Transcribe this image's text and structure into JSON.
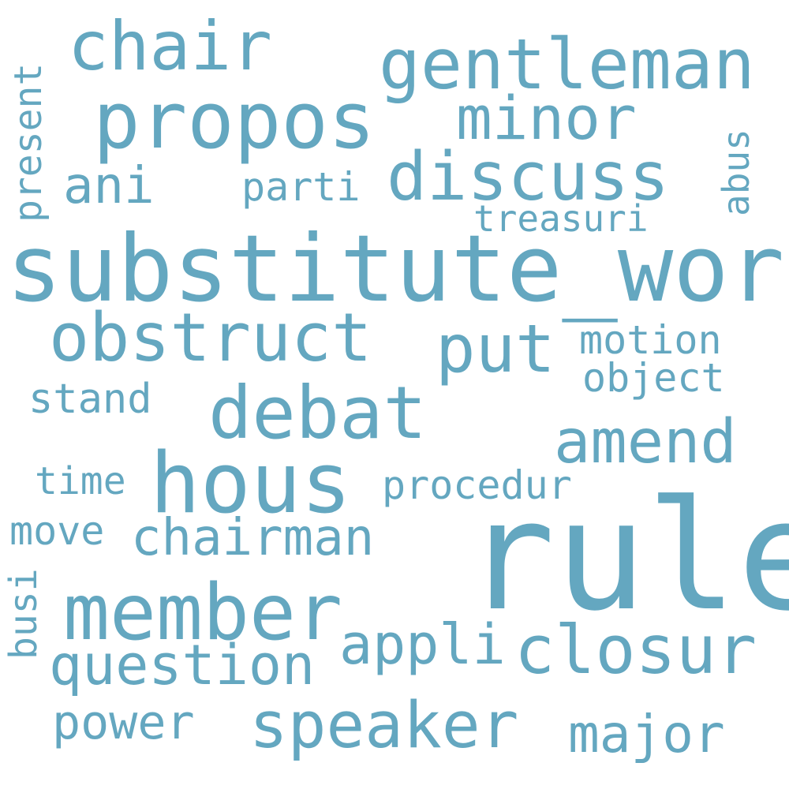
{
  "cloud": {
    "color": "#64a7c0",
    "words": [
      {
        "id": "rule",
        "text": "rule"
      },
      {
        "id": "substitute-word",
        "text": "substitute_word"
      },
      {
        "id": "hous",
        "text": "hous"
      },
      {
        "id": "member",
        "text": "member"
      },
      {
        "id": "propos",
        "text": "propos"
      },
      {
        "id": "gentleman",
        "text": "gentleman"
      },
      {
        "id": "debat",
        "text": "debat"
      },
      {
        "id": "obstruct",
        "text": "obstruct"
      },
      {
        "id": "speaker",
        "text": "speaker"
      },
      {
        "id": "closur",
        "text": "closur"
      },
      {
        "id": "discuss",
        "text": "discuss"
      },
      {
        "id": "chair",
        "text": "chair"
      },
      {
        "id": "minor",
        "text": "minor"
      },
      {
        "id": "amend",
        "text": "amend"
      },
      {
        "id": "put",
        "text": "put"
      },
      {
        "id": "question",
        "text": "question"
      },
      {
        "id": "chairman",
        "text": "chairman"
      },
      {
        "id": "appli",
        "text": "appli"
      },
      {
        "id": "ani",
        "text": "ani"
      },
      {
        "id": "major",
        "text": "major"
      },
      {
        "id": "power",
        "text": "power"
      },
      {
        "id": "procedur",
        "text": "procedur"
      },
      {
        "id": "motion",
        "text": "motion"
      },
      {
        "id": "parti",
        "text": "parti"
      },
      {
        "id": "object",
        "text": "object"
      },
      {
        "id": "stand",
        "text": "stand"
      },
      {
        "id": "treasuri",
        "text": "treasuri"
      },
      {
        "id": "move",
        "text": "move"
      },
      {
        "id": "time",
        "text": "time"
      },
      {
        "id": "present",
        "text": "present"
      },
      {
        "id": "abus",
        "text": "abus"
      },
      {
        "id": "busi",
        "text": "busi"
      }
    ]
  }
}
